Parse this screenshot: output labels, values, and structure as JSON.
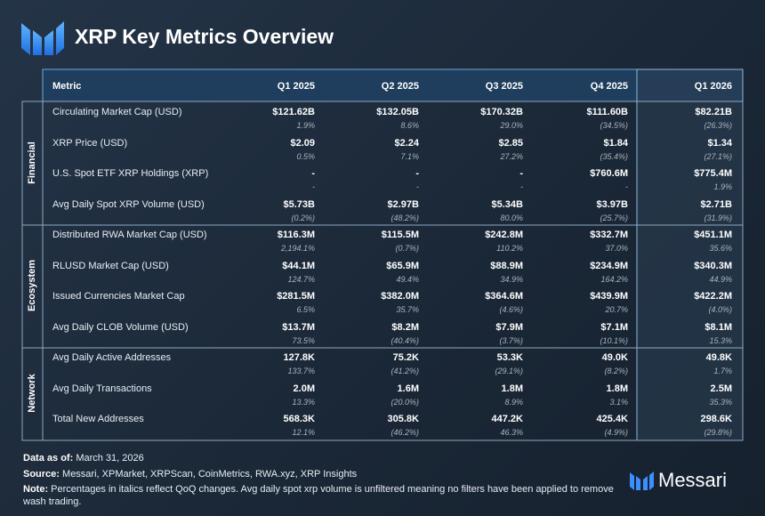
{
  "header": {
    "title": "XRP Key Metrics Overview"
  },
  "table": {
    "columns": [
      "Metric",
      "Q1 2025",
      "Q2 2025",
      "Q3 2025",
      "Q4 2025",
      "Q1 2026"
    ],
    "groups": [
      {
        "label": "Financial",
        "rows": [
          {
            "metric": "Circulating Market Cap (USD)",
            "cells": [
              {
                "value": "$121.62B",
                "change": "1.9%"
              },
              {
                "value": "$132.05B",
                "change": "8.6%"
              },
              {
                "value": "$170.32B",
                "change": "29.0%"
              },
              {
                "value": "$111.60B",
                "change": "(34.5%)"
              },
              {
                "value": "$82.21B",
                "change": "(26.3%)"
              }
            ]
          },
          {
            "metric": "XRP Price (USD)",
            "cells": [
              {
                "value": "$2.09",
                "change": "0.5%"
              },
              {
                "value": "$2.24",
                "change": "7.1%"
              },
              {
                "value": "$2.85",
                "change": "27.2%"
              },
              {
                "value": "$1.84",
                "change": "(35.4%)"
              },
              {
                "value": "$1.34",
                "change": "(27.1%)"
              }
            ]
          },
          {
            "metric": "U.S. Spot ETF XRP Holdings (XRP)",
            "cells": [
              {
                "value": "-",
                "change": "-"
              },
              {
                "value": "-",
                "change": "-"
              },
              {
                "value": "-",
                "change": "-"
              },
              {
                "value": "$760.6M",
                "change": "-"
              },
              {
                "value": "$775.4M",
                "change": "1.9%"
              }
            ]
          },
          {
            "metric": "Avg Daily Spot XRP Volume (USD)",
            "cells": [
              {
                "value": "$5.73B",
                "change": "(0.2%)"
              },
              {
                "value": "$2.97B",
                "change": "(48.2%)"
              },
              {
                "value": "$5.34B",
                "change": "80.0%"
              },
              {
                "value": "$3.97B",
                "change": "(25.7%)"
              },
              {
                "value": "$2.71B",
                "change": "(31.9%)"
              }
            ]
          }
        ]
      },
      {
        "label": "Ecosystem",
        "rows": [
          {
            "metric": "Distributed RWA Market Cap (USD)",
            "cells": [
              {
                "value": "$116.3M",
                "change": "2,194.1%"
              },
              {
                "value": "$115.5M",
                "change": "(0.7%)"
              },
              {
                "value": "$242.8M",
                "change": "110.2%"
              },
              {
                "value": "$332.7M",
                "change": "37.0%"
              },
              {
                "value": "$451.1M",
                "change": "35.6%"
              }
            ]
          },
          {
            "metric": "RLUSD Market Cap (USD)",
            "cells": [
              {
                "value": "$44.1M",
                "change": "124.7%"
              },
              {
                "value": "$65.9M",
                "change": "49.4%"
              },
              {
                "value": "$88.9M",
                "change": "34.9%"
              },
              {
                "value": "$234.9M",
                "change": "164.2%"
              },
              {
                "value": "$340.3M",
                "change": "44.9%"
              }
            ]
          },
          {
            "metric": "Issued Currencies Market Cap",
            "cells": [
              {
                "value": "$281.5M",
                "change": "6.5%"
              },
              {
                "value": "$382.0M",
                "change": "35.7%"
              },
              {
                "value": "$364.6M",
                "change": "(4.6%)"
              },
              {
                "value": "$439.9M",
                "change": "20.7%"
              },
              {
                "value": "$422.2M",
                "change": "(4.0%)"
              }
            ]
          },
          {
            "metric": "Avg Daily CLOB Volume (USD)",
            "cells": [
              {
                "value": "$13.7M",
                "change": "73.5%"
              },
              {
                "value": "$8.2M",
                "change": "(40.4%)"
              },
              {
                "value": "$7.9M",
                "change": "(3.7%)"
              },
              {
                "value": "$7.1M",
                "change": "(10.1%)"
              },
              {
                "value": "$8.1M",
                "change": "15.3%"
              }
            ]
          }
        ]
      },
      {
        "label": "Network",
        "rows": [
          {
            "metric": "Avg Daily Active Addresses",
            "cells": [
              {
                "value": "127.8K",
                "change": "133.7%"
              },
              {
                "value": "75.2K",
                "change": "(41.2%)"
              },
              {
                "value": "53.3K",
                "change": "(29.1%)"
              },
              {
                "value": "49.0K",
                "change": "(8.2%)"
              },
              {
                "value": "49.8K",
                "change": "1.7%"
              }
            ]
          },
          {
            "metric": "Avg Daily Transactions",
            "cells": [
              {
                "value": "2.0M",
                "change": "13.3%"
              },
              {
                "value": "1.6M",
                "change": "(20.0%)"
              },
              {
                "value": "1.8M",
                "change": "8.9%"
              },
              {
                "value": "1.8M",
                "change": "3.1%"
              },
              {
                "value": "2.5M",
                "change": "35.3%"
              }
            ]
          },
          {
            "metric": "Total New Addresses",
            "cells": [
              {
                "value": "568.3K",
                "change": "12.1%"
              },
              {
                "value": "305.8K",
                "change": "(46.2%)"
              },
              {
                "value": "447.2K",
                "change": "46.3%"
              },
              {
                "value": "425.4K",
                "change": "(4.9%)"
              },
              {
                "value": "298.6K",
                "change": "(29.8%)"
              }
            ]
          }
        ]
      }
    ]
  },
  "footer": {
    "date_label": "Data as of:",
    "date": "March 31, 2026",
    "source_label": "Source:",
    "source": "Messari, XPMarket, XRPScan, CoinMetrics, RWA.xyz, XRP Insights",
    "note_label": "Note:",
    "note": "Percentages in italics reflect QoQ changes. Avg daily spot xrp volume is unfiltered meaning no filters have been applied to remove wash trading.",
    "brand": "Messari"
  }
}
